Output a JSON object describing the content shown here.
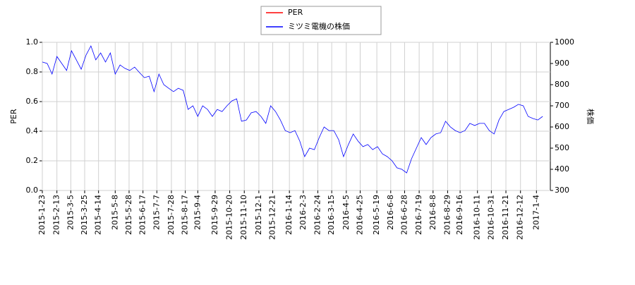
{
  "chart_data": {
    "type": "line",
    "legend": "top",
    "grid": true,
    "x": [
      "2015-1-23",
      "2015-1-30",
      "2015-2-6",
      "2015-2-13",
      "2015-2-20",
      "2015-2-27",
      "2015-3-6",
      "2015-3-13",
      "2015-3-20",
      "2015-3-27",
      "2015-4-3",
      "2015-4-10",
      "2015-4-17",
      "2015-4-24",
      "2015-5-1",
      "2015-5-8",
      "2015-5-15",
      "2015-5-22",
      "2015-5-29",
      "2015-6-5",
      "2015-6-12",
      "2015-6-19",
      "2015-6-26",
      "2015-7-3",
      "2015-7-10",
      "2015-7-17",
      "2015-7-24",
      "2015-7-31",
      "2015-8-7",
      "2015-8-14",
      "2015-8-21",
      "2015-8-28",
      "2015-9-4",
      "2015-9-11",
      "2015-9-18",
      "2015-9-25",
      "2015-10-2",
      "2015-10-9",
      "2015-10-16",
      "2015-10-23",
      "2015-10-30",
      "2015-11-6",
      "2015-11-13",
      "2015-11-20",
      "2015-11-27",
      "2015-12-4",
      "2015-12-11",
      "2015-12-18",
      "2015-12-25",
      "2016-1-1",
      "2016-1-8",
      "2016-1-15",
      "2016-1-22",
      "2016-1-29",
      "2016-2-5",
      "2016-2-12",
      "2016-2-19",
      "2016-2-26",
      "2016-3-4",
      "2016-3-11",
      "2016-3-18",
      "2016-3-25",
      "2016-4-1",
      "2016-4-8",
      "2016-4-15",
      "2016-4-22",
      "2016-4-29",
      "2016-5-6",
      "2016-5-13",
      "2016-5-20",
      "2016-5-27",
      "2016-6-3",
      "2016-6-10",
      "2016-6-17",
      "2016-6-24",
      "2016-7-1",
      "2016-7-8",
      "2016-7-15",
      "2016-7-22",
      "2016-7-29",
      "2016-8-5",
      "2016-8-12",
      "2016-8-19",
      "2016-8-26",
      "2016-9-2",
      "2016-9-9",
      "2016-9-16",
      "2016-9-23",
      "2016-9-30",
      "2016-10-7",
      "2016-10-14",
      "2016-10-21",
      "2016-10-28",
      "2016-11-4",
      "2016-11-11",
      "2016-11-18",
      "2016-11-25",
      "2016-12-2",
      "2016-12-9",
      "2016-12-16",
      "2016-12-23",
      "2016-12-30",
      "2017-1-6",
      "2017-1-13"
    ],
    "series": [
      {
        "name": "PER",
        "color": "#ff0000",
        "axis": "y",
        "values": [
          null,
          null,
          null,
          null,
          null,
          null,
          null,
          null,
          null,
          null,
          null,
          null,
          null,
          null,
          null,
          null,
          null,
          null,
          null,
          null,
          null,
          null,
          null,
          null,
          null,
          null,
          null,
          null,
          null,
          null,
          null,
          null,
          null,
          null,
          null,
          null,
          null,
          null,
          null,
          null,
          null,
          null,
          null,
          null,
          null,
          null,
          null,
          null,
          null,
          null,
          null,
          null,
          null,
          null,
          null,
          null,
          null,
          null,
          null,
          null,
          null,
          null,
          null,
          null,
          null,
          null,
          null,
          null,
          null,
          null,
          null,
          null,
          null,
          null,
          null,
          null,
          null,
          null,
          null,
          null,
          null,
          null,
          null,
          null,
          null,
          null,
          null,
          null,
          null,
          null,
          null,
          null,
          null,
          null,
          null,
          null,
          null,
          null,
          null,
          null,
          null,
          null,
          null,
          null
        ]
      },
      {
        "name": "ミツミ電機の株価",
        "color": "#0000ff",
        "axis": "y2",
        "values": [
          907,
          900,
          850,
          933,
          900,
          867,
          960,
          917,
          873,
          940,
          983,
          917,
          950,
          907,
          950,
          850,
          893,
          877,
          867,
          883,
          857,
          833,
          840,
          767,
          850,
          800,
          783,
          767,
          783,
          773,
          683,
          700,
          650,
          700,
          683,
          650,
          683,
          673,
          700,
          723,
          733,
          627,
          633,
          667,
          673,
          650,
          617,
          700,
          673,
          633,
          583,
          573,
          583,
          533,
          460,
          500,
          493,
          550,
          600,
          583,
          583,
          540,
          460,
          517,
          567,
          533,
          507,
          517,
          493,
          507,
          473,
          460,
          440,
          407,
          400,
          383,
          450,
          500,
          550,
          517,
          550,
          567,
          573,
          627,
          600,
          583,
          573,
          583,
          617,
          607,
          617,
          617,
          583,
          567,
          633,
          673,
          683,
          693,
          707,
          700,
          650,
          640,
          633,
          650
        ]
      }
    ],
    "xlim": [
      "2015-1-23",
      "2017-1-24"
    ],
    "xticks": [
      "2015-1-23",
      "2015-2-13",
      "2015-3-5",
      "2015-3-25",
      "2015-4-14",
      "2015-5-8",
      "2015-5-28",
      "2015-6-17",
      "2015-7-7",
      "2015-7-28",
      "2015-8-17",
      "2015-9-4",
      "2015-9-29",
      "2015-10-20",
      "2015-11-10",
      "2015-12-1",
      "2015-12-21",
      "2016-1-14",
      "2016-2-3",
      "2016-2-24",
      "2016-3-15",
      "2016-4-5",
      "2016-4-25",
      "2016-5-19",
      "2016-6-8",
      "2016-6-28",
      "2016-7-19",
      "2016-8-8",
      "2016-8-29",
      "2016-9-16",
      "2016-10-11",
      "2016-10-31",
      "2016-11-21",
      "2016-12-12",
      "2017-1-4"
    ],
    "ylabel": "PER",
    "ylim": [
      0,
      1
    ],
    "yticks": [
      {
        "value": 0,
        "label": "0.0"
      },
      0.2,
      0.4,
      0.6,
      0.8,
      {
        "value": 1,
        "label": "1.0"
      }
    ],
    "y2label": "株価",
    "y2lim": [
      300,
      1000
    ],
    "y2ticks": [
      300,
      400,
      500,
      600,
      700,
      800,
      900,
      1000
    ]
  }
}
